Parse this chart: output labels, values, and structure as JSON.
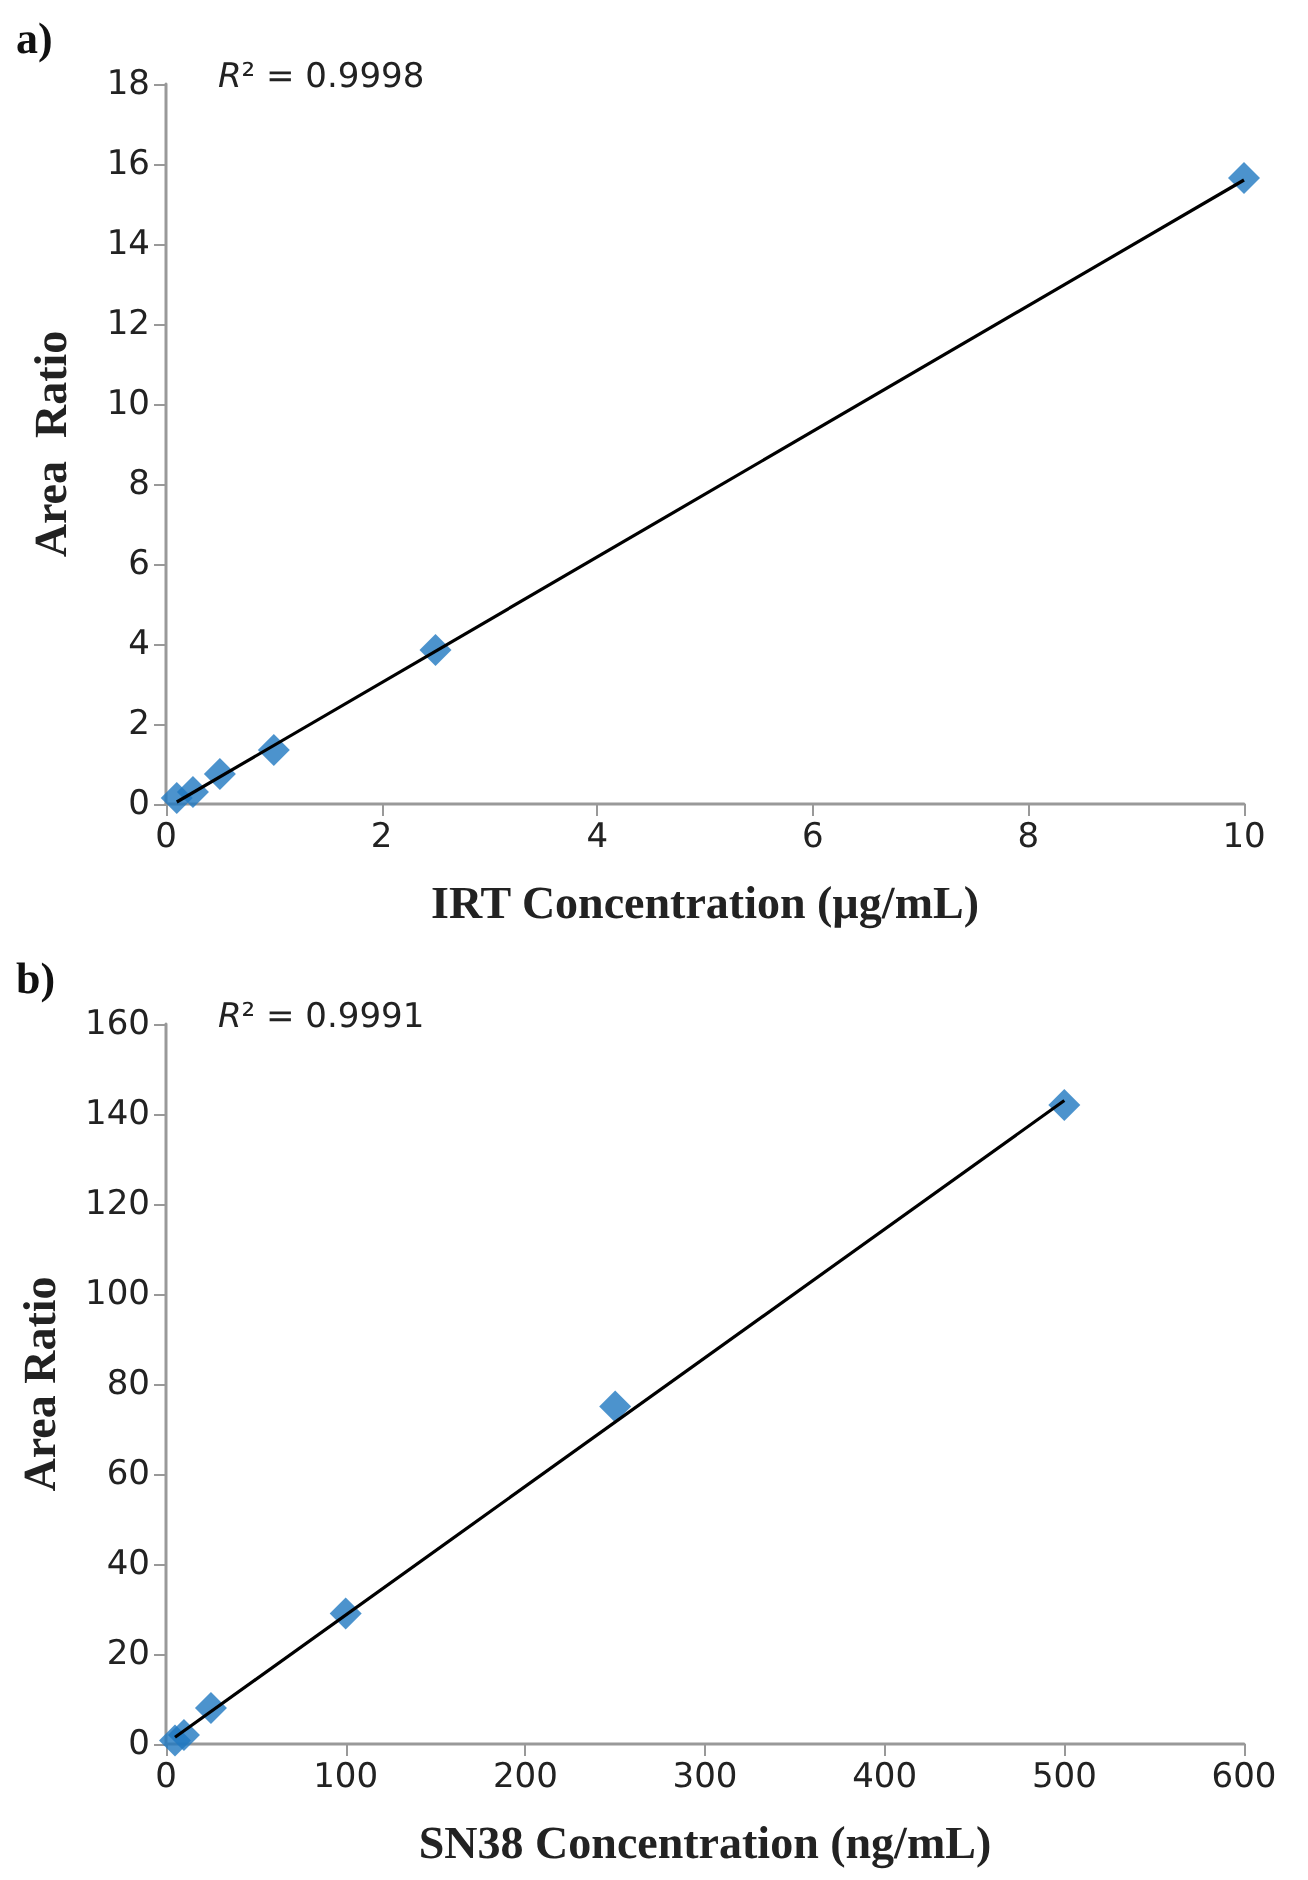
{
  "chart_data": [
    {
      "type": "scatter",
      "title": "a)",
      "xlabel": "IRT Concentration (µg/mL)",
      "ylabel": "Area  Ratio",
      "annotations": [
        "R² = 0.9998"
      ],
      "xlim": [
        0,
        10
      ],
      "xticks": [
        0,
        2,
        4,
        6,
        8,
        10
      ],
      "ylim": [
        0,
        18
      ],
      "yticks": [
        0,
        2,
        4,
        6,
        8,
        10,
        12,
        14,
        16,
        18
      ],
      "grid": false,
      "marker": "diamond",
      "series": [
        {
          "color": "#1f78c1",
          "x": [
            0.1,
            0.25,
            0.5,
            1,
            2.5,
            10
          ],
          "values": [
            0.15,
            0.3,
            0.75,
            1.35,
            3.85,
            15.65
          ]
        },
        {
          "type": "line",
          "color": "#000000",
          "marker": "none",
          "line_style": "solid",
          "x": [
            0.1,
            10
          ],
          "values": [
            0.05,
            15.6
          ]
        }
      ]
    },
    {
      "type": "scatter",
      "title": "b)",
      "xlabel": "SN38 Concentration (ng/mL)",
      "ylabel": "Area Ratio",
      "annotations": [
        "R² = 0.9991"
      ],
      "xlim": [
        0,
        600
      ],
      "xticks": [
        0,
        100,
        200,
        300,
        400,
        500,
        600
      ],
      "ylim": [
        0,
        160
      ],
      "yticks": [
        0,
        20,
        40,
        60,
        80,
        100,
        120,
        140,
        160
      ],
      "grid": false,
      "marker": "diamond",
      "series": [
        {
          "color": "#1f78c1",
          "x": [
            5,
            10,
            25,
            100,
            250,
            500
          ],
          "values": [
            0.8,
            2,
            8,
            29,
            75,
            142
          ]
        },
        {
          "type": "line",
          "color": "#000000",
          "marker": "none",
          "line_style": "solid",
          "x": [
            5,
            500
          ],
          "values": [
            1.5,
            143
          ]
        }
      ]
    }
  ]
}
